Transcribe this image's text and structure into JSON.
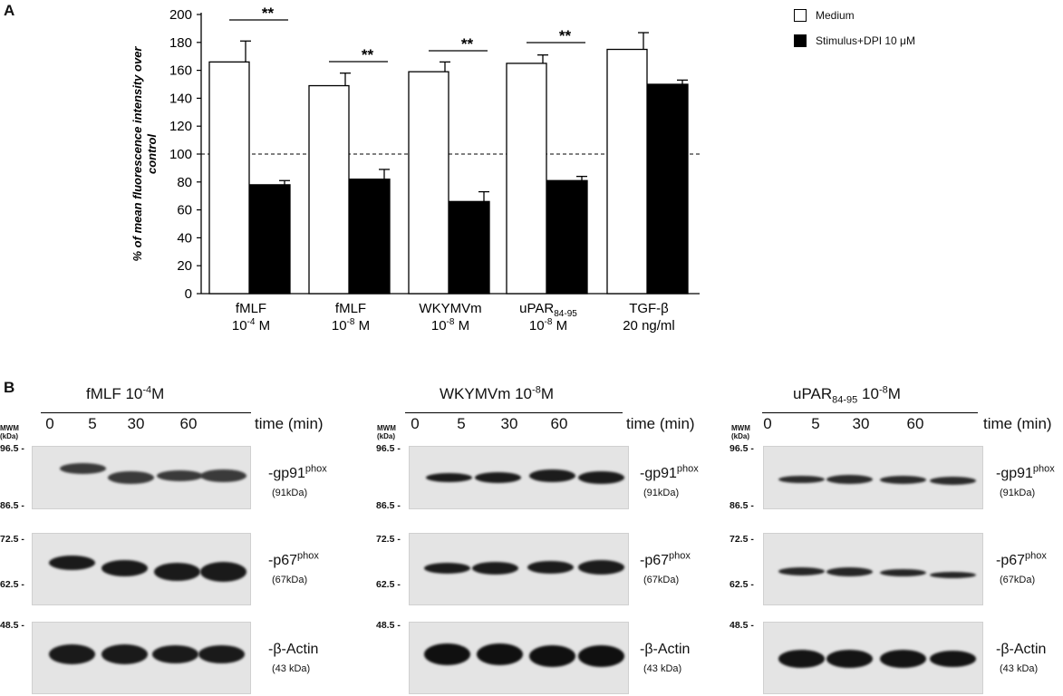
{
  "panels": {
    "a_label": "A",
    "b_label": "B"
  },
  "legend": {
    "items": [
      {
        "label": "Medium",
        "color": "#ffffff"
      },
      {
        "label": "Stimulus+DPI 10 μM",
        "color": "#000000"
      }
    ]
  },
  "chart_data": {
    "type": "bar",
    "title": "",
    "ylabel": "% of mean fluorescence intensity over control",
    "ylim": [
      0,
      200
    ],
    "yticks": [
      0,
      20,
      40,
      60,
      80,
      100,
      120,
      140,
      160,
      180,
      200
    ],
    "reference_line": 100,
    "categories": [
      {
        "line1": "fMLF",
        "line2_base": "10",
        "line2_sup": "-4",
        "line2_tail": " M",
        "sub": ""
      },
      {
        "line1": "fMLF",
        "line2_base": "10",
        "line2_sup": "-8",
        "line2_tail": " M",
        "sub": ""
      },
      {
        "line1": "WKYMVm",
        "line2_base": "10",
        "line2_sup": "-8",
        "line2_tail": " M",
        "sub": ""
      },
      {
        "line1": "uPAR",
        "line2_base": "10",
        "line2_sup": "-8",
        "line2_tail": " M",
        "sub": "84-95"
      },
      {
        "line1": "TGF-β",
        "line2_base": "20 ng/ml",
        "line2_sup": "",
        "line2_tail": "",
        "sub": ""
      }
    ],
    "series": [
      {
        "name": "Medium",
        "color": "#ffffff",
        "values": [
          166,
          149,
          159,
          165,
          175
        ],
        "errors": [
          15,
          9,
          7,
          6,
          12
        ]
      },
      {
        "name": "Stimulus+DPI 10 μM",
        "color": "#000000",
        "values": [
          78,
          82,
          66,
          81,
          150
        ],
        "errors": [
          3,
          7,
          7,
          3,
          3
        ]
      }
    ],
    "significance": [
      "**",
      "**",
      "**",
      "**",
      ""
    ]
  },
  "western_blot": {
    "time_label": "time (min)",
    "mwm_label": "MWM (kDa)",
    "lanes": [
      "0",
      "5",
      "30",
      "60"
    ],
    "proteins": [
      {
        "name": "-gp91",
        "sup": "phox",
        "kda": "(91kDa)",
        "markers": [
          "96.5 -",
          "86.5 -"
        ]
      },
      {
        "name": "-p67",
        "sup": "phox",
        "kda": "(67kDa)",
        "markers": [
          "72.5 -",
          "62.5 -"
        ]
      },
      {
        "name": "-β-Actin",
        "sup": "",
        "kda": "(43 kDa)",
        "markers": [
          "48.5 -"
        ]
      }
    ],
    "blots": [
      {
        "title": "fMLF 10",
        "title_sup": "-4",
        "title_tail": "M",
        "title_sub": ""
      },
      {
        "title": "WKYMVm 10",
        "title_sup": "-8",
        "title_tail": "M",
        "title_sub": ""
      },
      {
        "title": "uPAR",
        "title_sub": "84-95",
        "title_sup": "-8",
        "title_tail": "M",
        "title_mid": " 10"
      }
    ]
  }
}
